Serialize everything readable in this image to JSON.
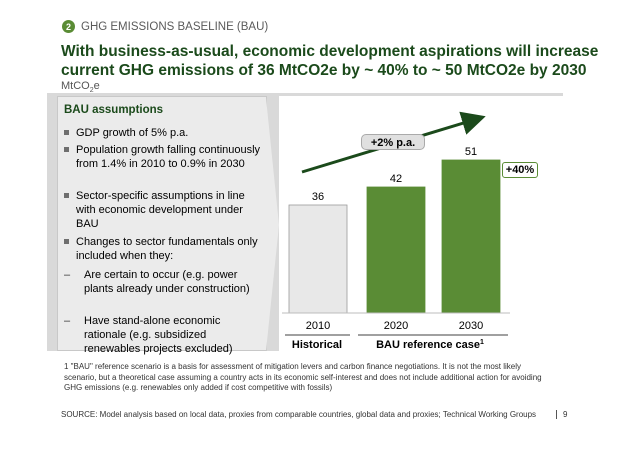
{
  "header": {
    "badge": "2",
    "section": "GHG EMISSIONS BASELINE (BAU)"
  },
  "title": "With business-as-usual, economic development aspirations will increase current GHG emissions of 36 MtCO2e by ~ 40% to ~ 50 MtCO2e by 2030",
  "unit": {
    "main": "MtCO",
    "sub": "2",
    "tail": "e"
  },
  "assumptions": {
    "title": "BAU assumptions",
    "bullets": [
      "GDP growth of 5% p.a.",
      "Population growth falling continuously from 1.4% in 2010 to 0.9% in 2030",
      "Sector-specific assumptions in line with economic development under BAU",
      "Changes to sector fundamentals only included when they:"
    ],
    "subbullets": [
      "Are certain to occur (e.g. power plants already under construction)",
      "Have stand-alone economic rationale (e.g. subsidized renewables projects excluded)"
    ],
    "dash": "–"
  },
  "chart_data": {
    "type": "bar",
    "categories": [
      "2010",
      "2020",
      "2030"
    ],
    "values": [
      36,
      42,
      51
    ],
    "bar_colors": [
      "#e8e8e8",
      "#5a8c35",
      "#5a8c35"
    ],
    "groups": [
      "Historical",
      "BAU reference case"
    ],
    "group_footnote_mark": "1",
    "annotations": {
      "growth": "+2% p.a.",
      "increase": "+40%"
    },
    "ylim": [
      0,
      60
    ]
  },
  "footnote": "1 \"BAU\" reference scenario is a basis for assessment of mitigation levers and carbon finance negotiations. It is not the most likely scenario, but a theoretical case assuming a country acts in its economic self-interest and does not include additional action for avoiding GHG emissions (e.g. renewables only added if cost competitive with fossils)",
  "source": "SOURCE: Model analysis based on local data, proxies from comparable countries, global data and proxies; Technical Working Groups",
  "page": "9"
}
